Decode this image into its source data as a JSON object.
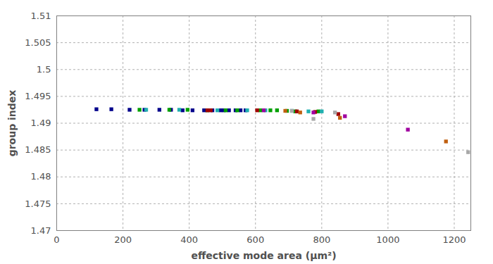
{
  "chart_data": {
    "type": "scatter",
    "x_label": "effective mode area (µm²)",
    "y_label": "group index",
    "xlim": [
      0,
      1250
    ],
    "xticks": [
      0,
      200,
      400,
      600,
      800,
      1000,
      1200
    ],
    "ylim": [
      1.47,
      1.51
    ],
    "yticks": [
      1.47,
      1.475,
      1.48,
      1.485,
      1.49,
      1.495,
      1.5,
      1.505,
      1.51
    ],
    "grid": true,
    "marker": "square",
    "series": [
      {
        "color": "#00008b",
        "x": [
          120,
          165,
          220,
          265,
          310,
          345,
          380,
          410,
          445,
          470,
          495,
          505,
          520,
          540,
          555,
          570
        ],
        "values": [
          1.4926,
          1.4926,
          1.4925,
          1.4925,
          1.4925,
          1.4925,
          1.4924,
          1.4924,
          1.4924,
          1.4924,
          1.4924,
          1.4924,
          1.4924,
          1.4924,
          1.4924,
          1.4924
        ]
      },
      {
        "color": "#00a000",
        "x": [
          250,
          340,
          395,
          455,
          510,
          545,
          615,
          645,
          665,
          695,
          720,
          790
        ],
        "values": [
          1.4925,
          1.4925,
          1.4925,
          1.4924,
          1.4924,
          1.4924,
          1.4924,
          1.4924,
          1.4924,
          1.4923,
          1.4922,
          1.4922
        ]
      },
      {
        "color": "#20b0b0",
        "x": [
          270,
          370,
          485,
          575,
          630,
          710,
          760,
          800
        ],
        "values": [
          1.4925,
          1.4925,
          1.4924,
          1.4924,
          1.4924,
          1.4923,
          1.4922,
          1.4922
        ]
      },
      {
        "color": "#a00000",
        "x": [
          455,
          465,
          605,
          725,
          780,
          850
        ],
        "values": [
          1.4924,
          1.4924,
          1.4924,
          1.4922,
          1.4921,
          1.4917
        ]
      },
      {
        "color": "#c06010",
        "x": [
          690,
          735,
          855,
          1175
        ],
        "values": [
          1.4923,
          1.492,
          1.491,
          1.4866
        ]
      },
      {
        "color": "#a000a0",
        "x": [
          625,
          775,
          870,
          1060
        ],
        "values": [
          1.4924,
          1.492,
          1.4913,
          1.4888
        ]
      },
      {
        "color": "#a8a8a8",
        "x": [
          710,
          775,
          840,
          1242
        ],
        "values": [
          1.4923,
          1.4908,
          1.492,
          1.4846
        ]
      }
    ]
  }
}
